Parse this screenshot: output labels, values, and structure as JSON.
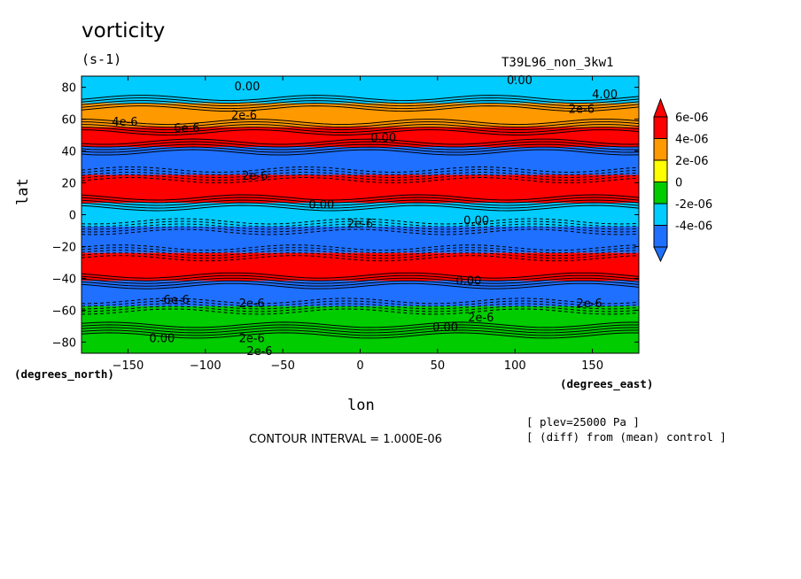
{
  "chart_data": {
    "type": "heatmap",
    "title": "vorticity",
    "units": "(s-1)",
    "run_label": "T39L96_non_3kw1",
    "xlabel": "lon",
    "ylabel": "lat",
    "x_unit_label": "(degrees_east)",
    "y_unit_label": "(degrees_north)",
    "xlim": [
      -180,
      180
    ],
    "ylim": [
      -87,
      87
    ],
    "x_ticks": [
      -150,
      -100,
      -50,
      0,
      50,
      100,
      150
    ],
    "y_ticks": [
      -80,
      -60,
      -40,
      -20,
      0,
      20,
      40,
      60,
      80
    ],
    "x_tick_labels": [
      "-150",
      "-100",
      "-50",
      "0",
      "50",
      "100",
      "150"
    ],
    "y_tick_labels": [
      "-80",
      "-60",
      "-40",
      "-20",
      "0",
      "20",
      "40",
      "60",
      "80"
    ],
    "contour_interval_text": "CONTOUR INTERVAL = 1.000E-06",
    "notes": [
      "[ plev=25000 Pa ]",
      "[ (diff) from (mean) control ]"
    ],
    "legend": {
      "bins": [
        {
          "label": "",
          "color": "#1f70ff"
        },
        {
          "label": "-4e-06",
          "color": "#00ccff"
        },
        {
          "label": "-2e-06",
          "color": "#00cc00"
        },
        {
          "label": "0",
          "color": "#ffff00"
        },
        {
          "label": "2e-06",
          "color": "#ff9900"
        },
        {
          "label": "4e-06",
          "color": "#ff0000"
        }
      ],
      "labels": [
        "6e-06",
        "4e-06",
        "2e-06",
        "0",
        "-2e-06",
        "-4e-06"
      ],
      "low_arrow_color": "#1f70ff",
      "high_arrow_color": "#ff0000"
    },
    "contour_labels": [
      {
        "lon": -73,
        "lat": 78,
        "text": "0.00"
      },
      {
        "lon": 103,
        "lat": 82,
        "text": "0.00"
      },
      {
        "lon": 158,
        "lat": 73,
        "text": "4.00"
      },
      {
        "lon": -152,
        "lat": 56,
        "text": "4e-6"
      },
      {
        "lon": -75,
        "lat": 60,
        "text": "2e-6"
      },
      {
        "lon": -112,
        "lat": 52,
        "text": "6e-6"
      },
      {
        "lon": 143,
        "lat": 64,
        "text": "2e-6"
      },
      {
        "lon": 15,
        "lat": 46,
        "text": "0.00"
      },
      {
        "lon": -68,
        "lat": 22,
        "text": "2e-6"
      },
      {
        "lon": -25,
        "lat": 4,
        "text": "0.00"
      },
      {
        "lon": 0,
        "lat": -8,
        "text": "2e-6"
      },
      {
        "lon": 75,
        "lat": -6,
        "text": "0.00"
      },
      {
        "lon": 70,
        "lat": -44,
        "text": "0.00"
      },
      {
        "lon": -120,
        "lat": -56,
        "text": "-6e-6"
      },
      {
        "lon": -70,
        "lat": -58,
        "text": "2e-6"
      },
      {
        "lon": 148,
        "lat": -58,
        "text": "2e-6"
      },
      {
        "lon": 78,
        "lat": -67,
        "text": "2e-6"
      },
      {
        "lon": 55,
        "lat": -73,
        "text": "0.00"
      },
      {
        "lon": -128,
        "lat": -80,
        "text": "0.00"
      },
      {
        "lon": -70,
        "lat": -80,
        "text": "2e-6"
      },
      {
        "lon": -65,
        "lat": -88,
        "text": "2e-6"
      }
    ],
    "field_bands": [
      {
        "lat": 80,
        "value": 0.0,
        "color": "#00ccff"
      },
      {
        "lat": 60,
        "value": 3.5,
        "color": "#ff9900"
      },
      {
        "lat": 50,
        "value": 6.0,
        "color": "#ff0000"
      },
      {
        "lat": 35,
        "value": -5.0,
        "color": "#1f70ff"
      },
      {
        "lat": 15,
        "value": 6.0,
        "color": "#ff0000"
      },
      {
        "lat": 0,
        "value": -1.0,
        "color": "#00ccff"
      },
      {
        "lat": -15,
        "value": -5.0,
        "color": "#1f70ff"
      },
      {
        "lat": -33,
        "value": 6.0,
        "color": "#ff0000"
      },
      {
        "lat": -50,
        "value": -5.0,
        "color": "#1f70ff"
      },
      {
        "lat": -65,
        "value": 1.0,
        "color": "#00cc00"
      },
      {
        "lat": -80,
        "value": 0.5,
        "color": "#00cc00"
      }
    ]
  }
}
